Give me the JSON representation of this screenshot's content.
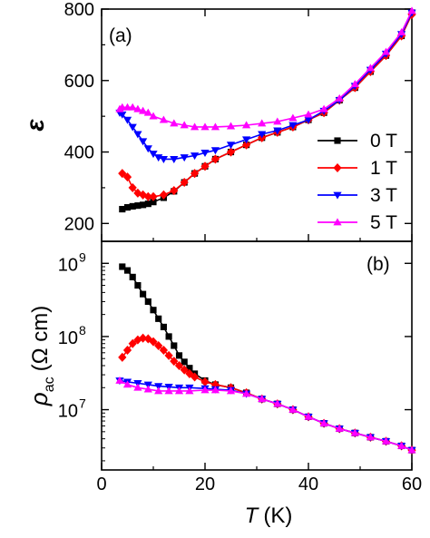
{
  "chart_data": [
    {
      "panel": "(a)",
      "type": "line",
      "xlabel_italic": "T",
      "xunit": "(K)",
      "ylabel": "ε",
      "xlim": [
        0,
        60
      ],
      "ylim": [
        150,
        800
      ],
      "xticks": [
        0,
        20,
        40,
        60
      ],
      "yticks": [
        200,
        400,
        600,
        800
      ],
      "legend": {
        "placement": "right",
        "entries": [
          "0 T",
          "1 T",
          "3 T",
          "5 T"
        ]
      },
      "series": [
        {
          "name": "0 T",
          "color": "#000000",
          "marker": "square",
          "x": [
            4,
            5,
            6,
            7,
            8,
            9,
            10,
            12,
            14,
            16,
            18,
            20,
            22,
            25,
            28,
            31,
            34,
            37,
            40,
            43,
            46,
            49,
            52,
            55,
            58,
            60
          ],
          "y": [
            240,
            245,
            248,
            250,
            252,
            255,
            260,
            272,
            290,
            315,
            340,
            360,
            380,
            400,
            420,
            440,
            455,
            470,
            490,
            510,
            545,
            580,
            625,
            670,
            725,
            790
          ]
        },
        {
          "name": "1 T",
          "color": "#ff0000",
          "marker": "diamond",
          "x": [
            4,
            5,
            6,
            7,
            8,
            9,
            10,
            12,
            14,
            16,
            18,
            20,
            22,
            25,
            28,
            31,
            34,
            37,
            40,
            43,
            46,
            49,
            52,
            55,
            58,
            60
          ],
          "y": [
            340,
            330,
            300,
            285,
            280,
            275,
            275,
            280,
            292,
            315,
            340,
            360,
            380,
            400,
            420,
            440,
            455,
            470,
            490,
            510,
            545,
            580,
            625,
            670,
            725,
            785
          ]
        },
        {
          "name": "3 T",
          "color": "#0000ff",
          "marker": "triangle-down",
          "x": [
            3.5,
            4,
            5,
            6,
            7,
            8,
            9,
            10,
            11,
            12,
            14,
            16,
            18,
            20,
            22,
            25,
            28,
            31,
            34,
            37,
            40,
            43,
            46,
            49,
            52,
            55,
            58,
            60
          ],
          "y": [
            510,
            505,
            490,
            470,
            450,
            430,
            410,
            395,
            385,
            380,
            380,
            385,
            390,
            398,
            405,
            420,
            435,
            450,
            460,
            475,
            490,
            515,
            545,
            585,
            630,
            675,
            730,
            790
          ]
        },
        {
          "name": "5 T",
          "color": "#ff00ff",
          "marker": "triangle-up",
          "x": [
            3.5,
            4,
            5,
            6,
            7,
            8,
            9,
            10,
            12,
            14,
            16,
            18,
            20,
            22,
            25,
            28,
            31,
            34,
            37,
            40,
            43,
            46,
            49,
            52,
            55,
            58,
            60
          ],
          "y": [
            520,
            525,
            525,
            525,
            520,
            515,
            510,
            500,
            490,
            480,
            475,
            470,
            470,
            470,
            472,
            475,
            480,
            485,
            495,
            505,
            520,
            550,
            590,
            635,
            680,
            735,
            795
          ]
        }
      ]
    },
    {
      "panel": "(b)",
      "type": "line",
      "xlabel_italic": "T",
      "xunit": "(K)",
      "ylabel_main": "ρ",
      "ylabel_sub": "ac",
      "ylabel_unit": "(Ω cm)",
      "yscale": "log",
      "xlim": [
        0,
        60
      ],
      "ylim": [
        1500000,
        2000000000
      ],
      "xticks": [
        0,
        20,
        40,
        60
      ],
      "ytick_labels": [
        {
          "value": 10000000,
          "base": "10",
          "exp": "7"
        },
        {
          "value": 100000000,
          "base": "10",
          "exp": "8"
        },
        {
          "value": 1000000000,
          "base": "10",
          "exp": "9"
        }
      ],
      "series": [
        {
          "name": "0 T",
          "color": "#000000",
          "marker": "square",
          "x": [
            4,
            5,
            6,
            7,
            8,
            9,
            10,
            11,
            12,
            13,
            14,
            15,
            16,
            17,
            18,
            20,
            22,
            25,
            28,
            31,
            34,
            37,
            40,
            43,
            46,
            49,
            52,
            55,
            58,
            60
          ],
          "y": [
            900000000,
            800000000,
            650000000,
            500000000,
            380000000,
            300000000,
            230000000,
            175000000,
            135000000,
            100000000,
            75000000,
            55000000,
            45000000,
            37000000,
            31000000,
            25000000,
            22000000,
            20000000,
            17000000,
            14000000,
            12000000,
            10000000,
            8000000,
            6500000,
            5500000,
            4800000,
            4200000,
            3700000,
            3200000,
            2800000
          ]
        },
        {
          "name": "1 T",
          "color": "#ff0000",
          "marker": "diamond",
          "x": [
            4,
            5,
            6,
            7,
            8,
            9,
            10,
            11,
            12,
            13,
            14,
            15,
            16,
            17,
            18,
            20,
            22,
            25,
            28,
            31,
            34,
            37,
            40,
            43,
            46,
            49,
            52,
            55,
            58,
            60
          ],
          "y": [
            52000000,
            65000000,
            80000000,
            90000000,
            95000000,
            93000000,
            85000000,
            75000000,
            65000000,
            55000000,
            46000000,
            40000000,
            35000000,
            31000000,
            28000000,
            24000000,
            22000000,
            20000000,
            17000000,
            14000000,
            12000000,
            10000000,
            8000000,
            6500000,
            5500000,
            4800000,
            4200000,
            3700000,
            3200000,
            2800000
          ]
        },
        {
          "name": "3 T",
          "color": "#0000ff",
          "marker": "triangle-down",
          "x": [
            3.5,
            5,
            7,
            9,
            11,
            13,
            15,
            17,
            20,
            22,
            25,
            28,
            31,
            34,
            37,
            40,
            43,
            46,
            49,
            52,
            55,
            58,
            60
          ],
          "y": [
            25000000,
            24000000,
            23000000,
            22000000,
            21000000,
            20500000,
            20000000,
            20000000,
            19500000,
            19000000,
            18500000,
            16500000,
            14000000,
            12000000,
            10000000,
            8000000,
            6500000,
            5500000,
            4800000,
            4200000,
            3700000,
            3200000,
            2800000
          ]
        },
        {
          "name": "5 T",
          "color": "#ff00ff",
          "marker": "triangle-up",
          "x": [
            3.5,
            5,
            7,
            9,
            11,
            13,
            15,
            17,
            20,
            22,
            25,
            28,
            31,
            34,
            37,
            40,
            43,
            46,
            49,
            52,
            55,
            58,
            60
          ],
          "y": [
            25000000,
            22000000,
            20000000,
            19000000,
            18000000,
            18000000,
            18000000,
            18000000,
            18500000,
            18500000,
            18000000,
            16500000,
            14000000,
            12000000,
            10000000,
            8000000,
            6500000,
            5500000,
            4800000,
            4200000,
            3700000,
            3200000,
            2800000
          ]
        }
      ]
    }
  ]
}
